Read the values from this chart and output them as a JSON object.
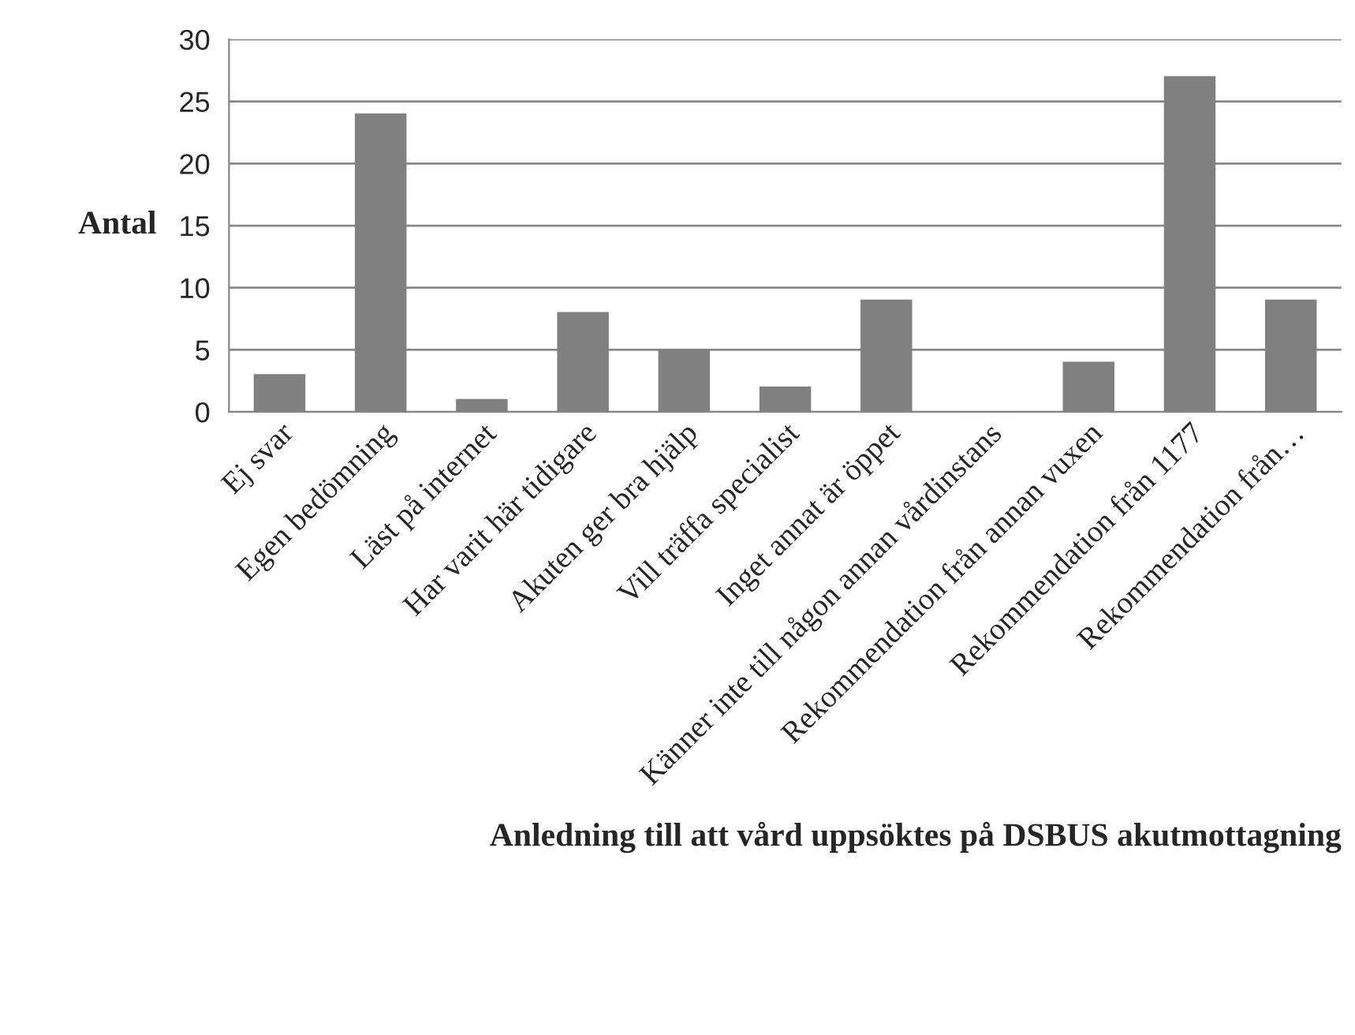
{
  "chart_data": {
    "type": "bar",
    "xlabel": "Anledning till att vård uppsöktes på DSBUS akutmottagning",
    "ylabel": "Antal",
    "categories": [
      "Ej svar",
      "Egen bedömning",
      "Läst på internet",
      "Har varit här tidigare",
      "Akuten ger bra hjälp",
      "Vill träffa specialist",
      "Inget annat är öppet",
      "Känner inte till någon annan vårdinstans",
      "Rekommendation från annan vuxen",
      "Rekommendation från 1177",
      "Rekommendation från…"
    ],
    "values": [
      3,
      24,
      1,
      8,
      5,
      2,
      9,
      0,
      4,
      27,
      9
    ],
    "color": "#808080",
    "ylim": [
      0,
      30
    ],
    "yticks": [
      0,
      5,
      10,
      15,
      20,
      25,
      30
    ],
    "grid": "y",
    "legend": false
  }
}
